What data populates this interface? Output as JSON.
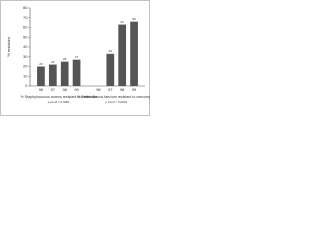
{
  "chart_data": {
    "type": "bar",
    "y_label": "% resistant",
    "color": "#555555",
    "ylim": [
      0,
      80
    ],
    "yticks": [
      0,
      10,
      20,
      30,
      40,
      50,
      60,
      70,
      80
    ],
    "groups": [
      {
        "name": "% Staphylococcus aureus resistant to methicillin",
        "note": "p trend = 0.0001",
        "categories": [
          "96",
          "97",
          "98",
          "99"
        ],
        "values": [
          20,
          22,
          25,
          27
        ]
      },
      {
        "name": "% Enterococcus faecium resistant to vancomycin",
        "note": "p trend < 0.0001",
        "categories": [
          "96",
          "97",
          "98",
          "99"
        ],
        "values": [
          0,
          33,
          63,
          66
        ]
      }
    ]
  }
}
